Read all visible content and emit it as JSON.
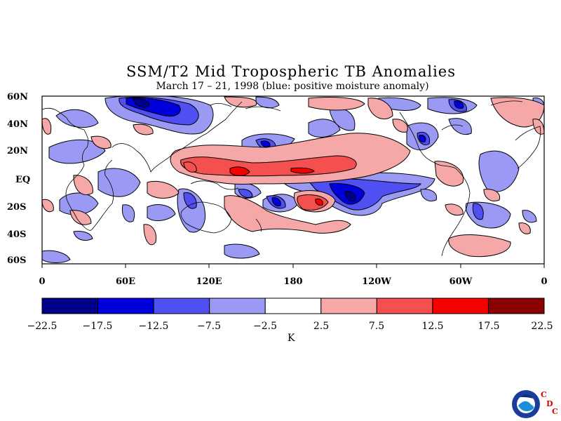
{
  "title": "SSM/T2 Mid Tropospheric TB Anomalies",
  "subtitle": "March 17 – 21, 1998 (blue: positive moisture anomaly)",
  "lat_labels": [
    "60N",
    "40N",
    "20N",
    "EQ",
    "20S",
    "40S",
    "60S"
  ],
  "lon_labels": [
    "0",
    "60E",
    "120E",
    "180",
    "120W",
    "60W",
    "0"
  ],
  "colorbar": {
    "ticks": [
      "−22.5",
      "−17.5",
      "−12.5",
      "−7.5",
      "−2.5",
      "2.5",
      "7.5",
      "12.5",
      "17.5",
      "22.5"
    ],
    "colors": [
      "#00008b",
      "#0000dd",
      "#5050f2",
      "#9a9af5",
      "#ffffff",
      "#f6a8a8",
      "#f55050",
      "#f60000",
      "#8b0000"
    ],
    "unit": "K"
  },
  "logo": {
    "text": "NOAA",
    "cdc": [
      "C",
      "D",
      "C"
    ]
  }
}
